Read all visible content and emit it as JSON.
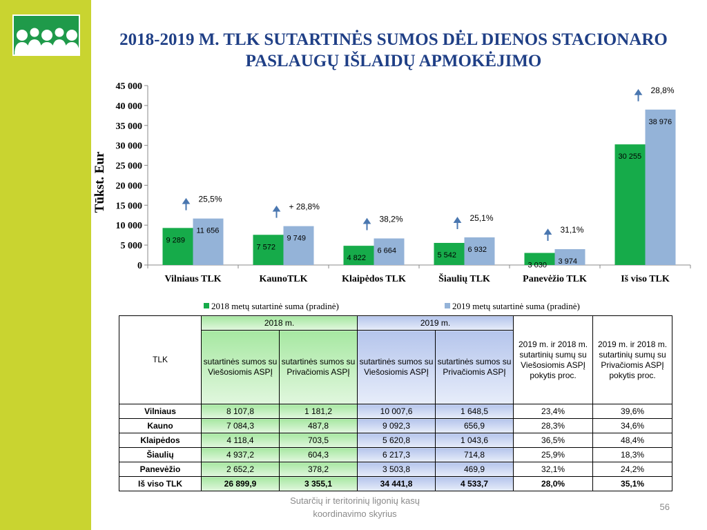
{
  "title": "2018-2019 M. TLK SUTARTINĖS SUMOS DĖL DIENOS STACIONARO PASLAUGŲ IŠLAIDŲ APMOKĖJIMO",
  "colors": {
    "sidebar": "#c9d430",
    "title": "#1f3f86",
    "series_2018": "#16ab4a",
    "series_2019": "#94b3d8",
    "arrow": "#4a77b0",
    "logo_bg": "#1f9a4a",
    "logo_people": "#ffffff"
  },
  "logo": {
    "icon": "people-group-logo-icon"
  },
  "chart_data": {
    "type": "bar",
    "ylabel": "Tūkst. Eur",
    "ylim": [
      0,
      45000
    ],
    "yticks": [
      "0",
      "5 000",
      "10 000",
      "15 000",
      "20 000",
      "25 000",
      "30 000",
      "35 000",
      "40 000",
      "45 000"
    ],
    "categories": [
      "Vilniaus TLK",
      "KaunoTLK",
      "Klaipėdos TLK",
      "Šiaulių TLK",
      "Panevėžio TLK",
      "Iš viso TLK"
    ],
    "series": [
      {
        "name": "2018 metų sutartinė suma (pradinė)",
        "values": [
          9289,
          7572,
          4822,
          5542,
          3030,
          30255
        ],
        "labels": [
          "9 289",
          "7 572",
          "4 822",
          "5 542",
          "3 030",
          "30 255"
        ]
      },
      {
        "name": "2019 metų sutartinė suma (pradinė)",
        "values": [
          11656,
          9749,
          6664,
          6932,
          3974,
          38976
        ],
        "labels": [
          "11 656",
          "9 749",
          "6 664",
          "6 932",
          "3 974",
          "38 976"
        ]
      }
    ],
    "change_labels": [
      "25,5%",
      "+ 28,8%",
      "38,2%",
      "25,1%",
      "31,1%",
      "28,8%"
    ],
    "legend_position": "bottom",
    "grid": false
  },
  "table": {
    "col_tlk": "TLK",
    "year_2018": "2018 m.",
    "year_2019": "2019 m.",
    "sub_public": "sutartinės sumos su Viešosiomis ASPĮ",
    "sub_private": "sutartinės sumos su Privačiomis ASPĮ",
    "change_public": "2019 m. ir 2018 m. sutartinių sumų su Viešosiomis ASPĮ pokytis proc.",
    "change_private": "2019 m. ir 2018 m. sutartinių sumų su Privačiomis ASPĮ pokytis proc.",
    "rows": [
      {
        "name": "Vilniaus",
        "pub2018": "8 107,8",
        "priv2018": "1 181,2",
        "pub2019": "10 007,6",
        "priv2019": "1 648,5",
        "chg_pub": "23,4%",
        "chg_priv": "39,6%"
      },
      {
        "name": "Kauno",
        "pub2018": "7 084,3",
        "priv2018": "487,8",
        "pub2019": "9 092,3",
        "priv2019": "656,9",
        "chg_pub": "28,3%",
        "chg_priv": "34,6%"
      },
      {
        "name": "Klaipėdos",
        "pub2018": "4 118,4",
        "priv2018": "703,5",
        "pub2019": "5 620,8",
        "priv2019": "1 043,6",
        "chg_pub": "36,5%",
        "chg_priv": "48,4%"
      },
      {
        "name": "Šiaulių",
        "pub2018": "4 937,2",
        "priv2018": "604,3",
        "pub2019": "6 217,3",
        "priv2019": "714,8",
        "chg_pub": "25,9%",
        "chg_priv": "18,3%"
      },
      {
        "name": "Panevėžio",
        "pub2018": "2 652,2",
        "priv2018": "378,2",
        "pub2019": "3 503,8",
        "priv2019": "469,9",
        "chg_pub": "32,1%",
        "chg_priv": "24,2%"
      }
    ],
    "total": {
      "name": "Iš viso TLK",
      "pub2018": "26 899,9",
      "priv2018": "3 355,1",
      "pub2019": "34 441,8",
      "priv2019": "4 533,7",
      "chg_pub": "28,0%",
      "chg_priv": "35,1%"
    }
  },
  "footer": {
    "text": "Sutarčių ir teritorinių ligonių kasų koordinavimo skyrius",
    "page_number": "56"
  }
}
